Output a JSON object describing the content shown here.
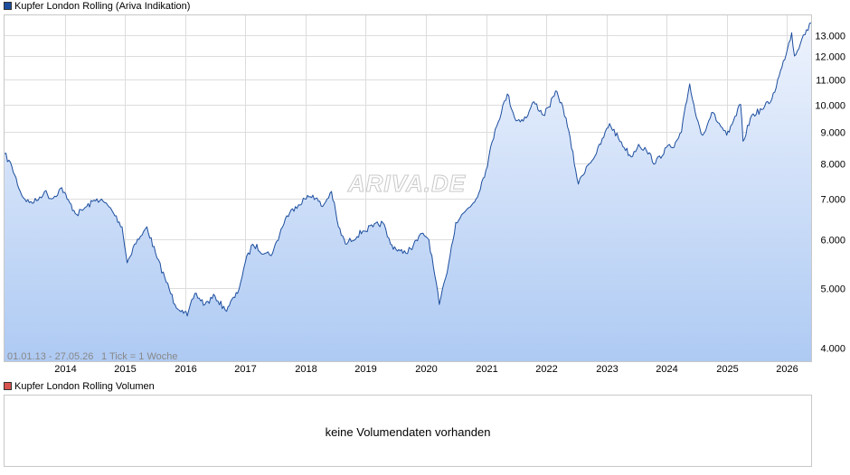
{
  "colors": {
    "line": "#1d4e9e",
    "fill_top": "#eef3fd",
    "fill_bottom": "#aecaf3",
    "grid": "#dddddd",
    "legend_main": "#1d4e9e",
    "legend_vol": "#d9534f"
  },
  "watermark": "ARIVA.DE",
  "legend": {
    "main": "Kupfer London Rolling (Ariva Indikation)",
    "volume": "Kupfer London Rolling Volumen"
  },
  "volume_message": "keine Volumendaten vorhanden",
  "range_text": "01.01.13 - 27.05.26",
  "tick_text": "1 Tick = 1 Woche",
  "chart_data": {
    "type": "line",
    "title": "Kupfer London Rolling (Ariva Indikation)",
    "y_scale": "log",
    "ylim": [
      3800,
      13600
    ],
    "xlim": [
      "2013-01-01",
      "2026-05-27"
    ],
    "y_ticks": [
      4000,
      5000,
      6000,
      7000,
      8000,
      9000,
      10000,
      11000,
      12000,
      13000
    ],
    "y_tick_labels": [
      "4.000",
      "5.000",
      "6.000",
      "7.000",
      "8.000",
      "9.000",
      "10.000",
      "11.000",
      "12.000",
      "13.000"
    ],
    "x_tick_labels": [
      "2014",
      "2015",
      "2016",
      "2017",
      "2018",
      "2019",
      "2020",
      "2021",
      "2022",
      "2023",
      "2024",
      "2025",
      "2026"
    ],
    "grid": true,
    "series": [
      {
        "name": "Kupfer London Rolling",
        "x": [
          "2013-01-01",
          "2013-02-15",
          "2013-04-15",
          "2013-06-01",
          "2013-07-15",
          "2013-09-01",
          "2013-10-15",
          "2013-12-15",
          "2014-01-15",
          "2014-03-15",
          "2014-05-15",
          "2014-07-15",
          "2014-09-01",
          "2014-10-15",
          "2014-12-15",
          "2015-01-15",
          "2015-03-01",
          "2015-04-15",
          "2015-05-15",
          "2015-07-15",
          "2015-09-01",
          "2015-11-01",
          "2015-12-15",
          "2016-01-15",
          "2016-03-01",
          "2016-05-01",
          "2016-07-01",
          "2016-09-01",
          "2016-11-15",
          "2016-12-31",
          "2017-02-15",
          "2017-05-01",
          "2017-06-15",
          "2017-09-01",
          "2017-11-01",
          "2017-12-28",
          "2018-02-15",
          "2018-04-15",
          "2018-06-08",
          "2018-07-20",
          "2018-09-01",
          "2018-12-15",
          "2019-02-15",
          "2019-04-15",
          "2019-06-01",
          "2019-08-15",
          "2019-10-01",
          "2019-12-15",
          "2020-01-20",
          "2020-03-23",
          "2020-05-01",
          "2020-07-01",
          "2020-09-01",
          "2020-11-01",
          "2020-12-31",
          "2021-02-25",
          "2021-05-10",
          "2021-07-01",
          "2021-09-01",
          "2021-10-18",
          "2021-12-15",
          "2022-01-15",
          "2022-03-07",
          "2022-05-01",
          "2022-07-15",
          "2022-09-01",
          "2022-11-01",
          "2023-01-20",
          "2023-03-15",
          "2023-05-31",
          "2023-07-15",
          "2023-09-01",
          "2023-10-25",
          "2023-12-31",
          "2024-02-15",
          "2024-03-31",
          "2024-05-20",
          "2024-07-01",
          "2024-08-07",
          "2024-10-01",
          "2024-12-31",
          "2025-01-15",
          "2025-03-25",
          "2025-04-09",
          "2025-06-01",
          "2025-08-01",
          "2025-10-01",
          "2025-12-01",
          "2026-01-29",
          "2026-02-15",
          "2026-04-01",
          "2026-05-27"
        ],
        "values": [
          8300,
          7900,
          7100,
          6900,
          6950,
          7200,
          7000,
          7300,
          7000,
          6600,
          6800,
          7000,
          6900,
          6700,
          6300,
          5500,
          5900,
          6100,
          6300,
          5600,
          5200,
          4700,
          4600,
          4500,
          4900,
          4700,
          4850,
          4600,
          4900,
          5500,
          5900,
          5700,
          5700,
          6500,
          6800,
          7000,
          7100,
          6800,
          7200,
          6300,
          5900,
          6200,
          6300,
          6400,
          5900,
          5700,
          5800,
          6150,
          6000,
          4700,
          5200,
          6400,
          6700,
          7000,
          7800,
          9100,
          10400,
          9400,
          9500,
          10100,
          9600,
          9900,
          10500,
          9500,
          7400,
          7900,
          8300,
          9300,
          8800,
          8200,
          8600,
          8400,
          8000,
          8500,
          8500,
          9000,
          10800,
          9500,
          8900,
          9700,
          8900,
          9000,
          10000,
          8700,
          9600,
          9800,
          10200,
          11500,
          13100,
          12000,
          12800,
          13600
        ]
      }
    ]
  }
}
